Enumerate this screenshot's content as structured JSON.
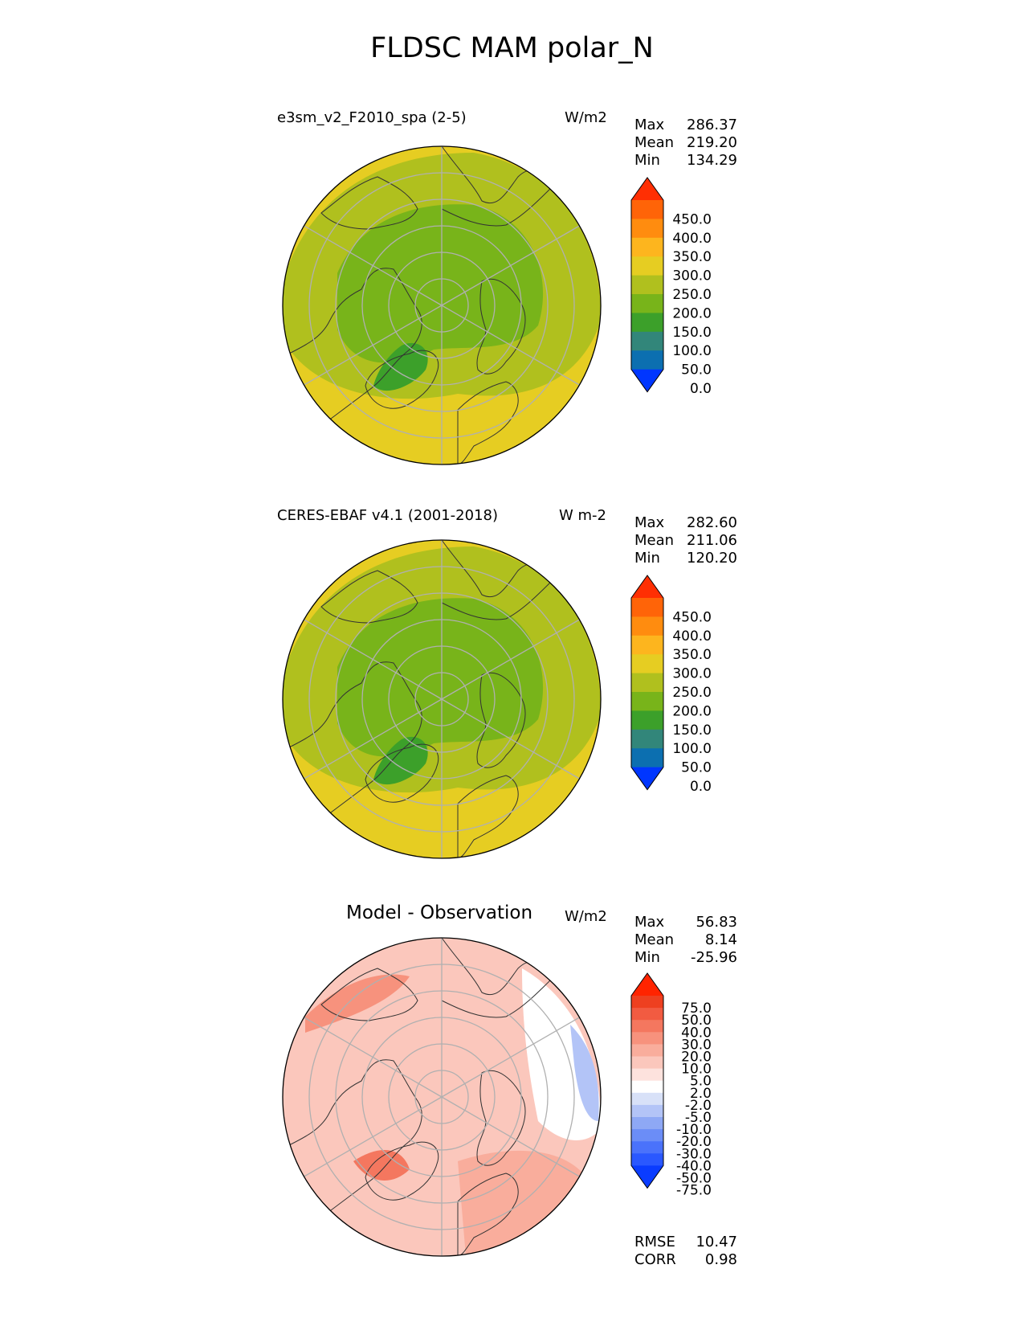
{
  "figure": {
    "title": "FLDSC MAM polar_N"
  },
  "colors": {
    "abs_levels": [
      "#0036ff",
      "#0c6fb0",
      "#32867a",
      "#3ca02a",
      "#78b41a",
      "#b0c01e",
      "#e6cd22",
      "#fdb51e",
      "#ff8c0f",
      "#ff6408",
      "#ff2f03"
    ],
    "diff_levels": [
      "#0a3cff",
      "#2a58ff",
      "#4a72fb",
      "#6b8df7",
      "#8ea8f5",
      "#b3c4f7",
      "#d8e1f8",
      "#ffffff",
      "#fde2dd",
      "#fbc7bc",
      "#f9ad9c",
      "#f7927d",
      "#f4775f",
      "#f25b41",
      "#ee4020",
      "#ff2400"
    ],
    "land_outline": "#333333",
    "graticule": "#b0b0b0"
  },
  "panels": [
    {
      "id": "test",
      "title": "e3sm_v2_F2010_spa (2-5)",
      "units": "W/m2",
      "stats": [
        {
          "label": "Max",
          "value": "286.37"
        },
        {
          "label": "Mean",
          "value": "219.20"
        },
        {
          "label": "Min",
          "value": "134.29"
        }
      ],
      "colorbar_ticks": [
        "450.0",
        "400.0",
        "350.0",
        "300.0",
        "250.0",
        "200.0",
        "150.0",
        "100.0",
        "50.0",
        "0.0"
      ]
    },
    {
      "id": "ref",
      "title": "CERES-EBAF v4.1 (2001-2018)",
      "units": "W m-2",
      "stats": [
        {
          "label": "Max",
          "value": "282.60"
        },
        {
          "label": "Mean",
          "value": "211.06"
        },
        {
          "label": "Min",
          "value": "120.20"
        }
      ],
      "colorbar_ticks": [
        "450.0",
        "400.0",
        "350.0",
        "300.0",
        "250.0",
        "200.0",
        "150.0",
        "100.0",
        "50.0",
        "0.0"
      ]
    },
    {
      "id": "diff",
      "title": "Model - Observation",
      "units": "W/m2",
      "stats": [
        {
          "label": "Max",
          "value": "56.83"
        },
        {
          "label": "Mean",
          "value": "8.14"
        },
        {
          "label": "Min",
          "value": "-25.96"
        }
      ],
      "colorbar_ticks": [
        "75.0",
        "50.0",
        "40.0",
        "30.0",
        "20.0",
        "10.0",
        "5.0",
        "2.0",
        "-2.0",
        "-5.0",
        "-10.0",
        "-20.0",
        "-30.0",
        "-40.0",
        "-50.0",
        "-75.0"
      ],
      "extra_stats": [
        {
          "label": "RMSE",
          "value": "10.47"
        },
        {
          "label": "CORR",
          "value": "0.98"
        }
      ]
    }
  ]
}
